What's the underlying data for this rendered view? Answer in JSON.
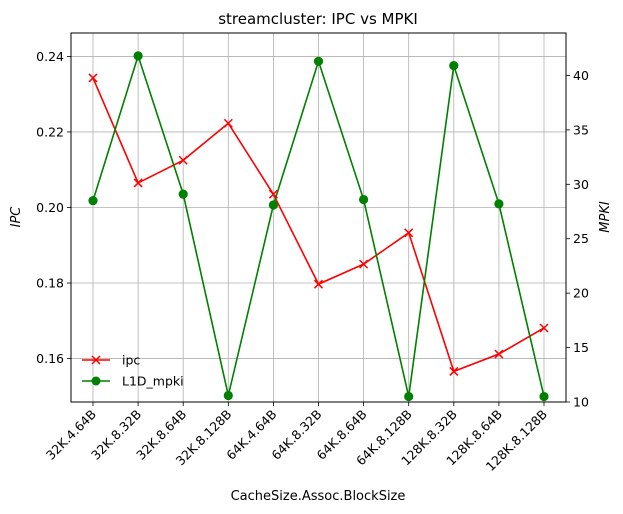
{
  "chart_data": {
    "type": "line",
    "title": "streamcluster: IPC vs MPKI",
    "xlabel": "CacheSize.Assoc.BlockSize",
    "ylabel": "IPC",
    "y2label": "MPKI",
    "categories": [
      "32K.4.64B",
      "32K.8.32B",
      "32K.8.64B",
      "32K.8.128B",
      "64K.4.64B",
      "64K.8.32B",
      "64K.8.64B",
      "64K.8.128B",
      "128K.8.32B",
      "128K.8.64B",
      "128K.8.128B"
    ],
    "ylim": [
      0.1485,
      0.2462
    ],
    "y2lim": [
      10.0,
      43.9
    ],
    "yticks": [
      "0.16",
      "0.18",
      "0.20",
      "0.22",
      "0.24"
    ],
    "y2ticks": [
      "10",
      "15",
      "20",
      "25",
      "30",
      "35",
      "40"
    ],
    "grid": true,
    "legend_position": "lower-left",
    "series": [
      {
        "name": "ipc",
        "axis": "left",
        "marker": "x",
        "color": "#ff0000",
        "values": [
          0.2343,
          0.2065,
          0.2125,
          0.2223,
          0.2035,
          0.1797,
          0.185,
          0.1933,
          0.1566,
          0.1612,
          0.1681
        ]
      },
      {
        "name": "L1D_mpki",
        "axis": "right",
        "marker": "o",
        "color": "#008000",
        "values": [
          28.5,
          41.8,
          29.1,
          10.6,
          28.1,
          41.3,
          28.6,
          10.5,
          40.9,
          28.2,
          10.5
        ]
      }
    ]
  }
}
